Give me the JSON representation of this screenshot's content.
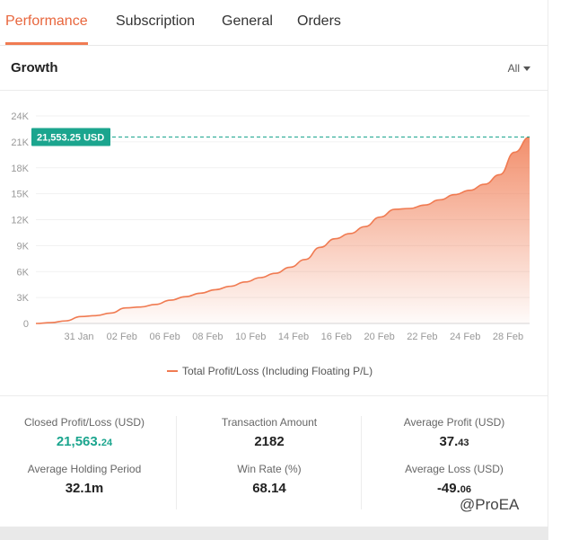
{
  "tabs": [
    {
      "label": "Performance",
      "active": true
    },
    {
      "label": "Subscription",
      "active": false
    },
    {
      "label": "General",
      "active": false
    },
    {
      "label": "Orders",
      "active": false
    }
  ],
  "section": {
    "title": "Growth",
    "filter_label": "All",
    "filter_icon": "caret-down-icon"
  },
  "colors": {
    "accent": "#f07b52",
    "highlight": "#1ba58e",
    "positive": "#1ba58e"
  },
  "chart_data": {
    "type": "area",
    "title": "",
    "xlabel": "",
    "ylabel": "",
    "y_ticks": [
      "0",
      "3K",
      "6K",
      "9K",
      "12K",
      "15K",
      "18K",
      "21K",
      "24K"
    ],
    "ylim": [
      0,
      24000
    ],
    "x_ticks": [
      "31 Jan",
      "02 Feb",
      "06 Feb",
      "08 Feb",
      "10 Feb",
      "14 Feb",
      "16 Feb",
      "20 Feb",
      "22 Feb",
      "24 Feb",
      "28 Feb"
    ],
    "grid": "horizontal",
    "current_value_label": "21,553.25 USD",
    "current_value": 21553.25,
    "series": [
      {
        "name": "Total Profit/Loss (Including Floating P/L)",
        "values": [
          0,
          100,
          300,
          800,
          900,
          1200,
          1800,
          1900,
          2200,
          2700,
          3100,
          3500,
          3900,
          4300,
          4800,
          5300,
          5800,
          6500,
          7400,
          8800,
          9800,
          10400,
          11200,
          12300,
          13200,
          13300,
          13700,
          14300,
          14900,
          15400,
          16100,
          17200,
          19800,
          21553
        ]
      }
    ],
    "legend": "bottom-center"
  },
  "stats": [
    {
      "label": "Closed Profit/Loss (USD)",
      "value_main": "21,563.",
      "value_small": "24",
      "style": "positive"
    },
    {
      "label": "Transaction Amount",
      "value_main": "2182",
      "value_small": "",
      "style": "normal"
    },
    {
      "label": "Average Profit (USD)",
      "value_main": "37.",
      "value_small": "43",
      "style": "normal"
    },
    {
      "label": "Average Holding Period",
      "value_main": "32.1m",
      "value_small": "",
      "style": "normal"
    },
    {
      "label": "Win Rate (%)",
      "value_main": "68.14",
      "value_small": "",
      "style": "normal"
    },
    {
      "label": "Average Loss (USD)",
      "value_main": "-49.",
      "value_small": "06",
      "style": "normal"
    }
  ],
  "watermark": "@ProEA"
}
